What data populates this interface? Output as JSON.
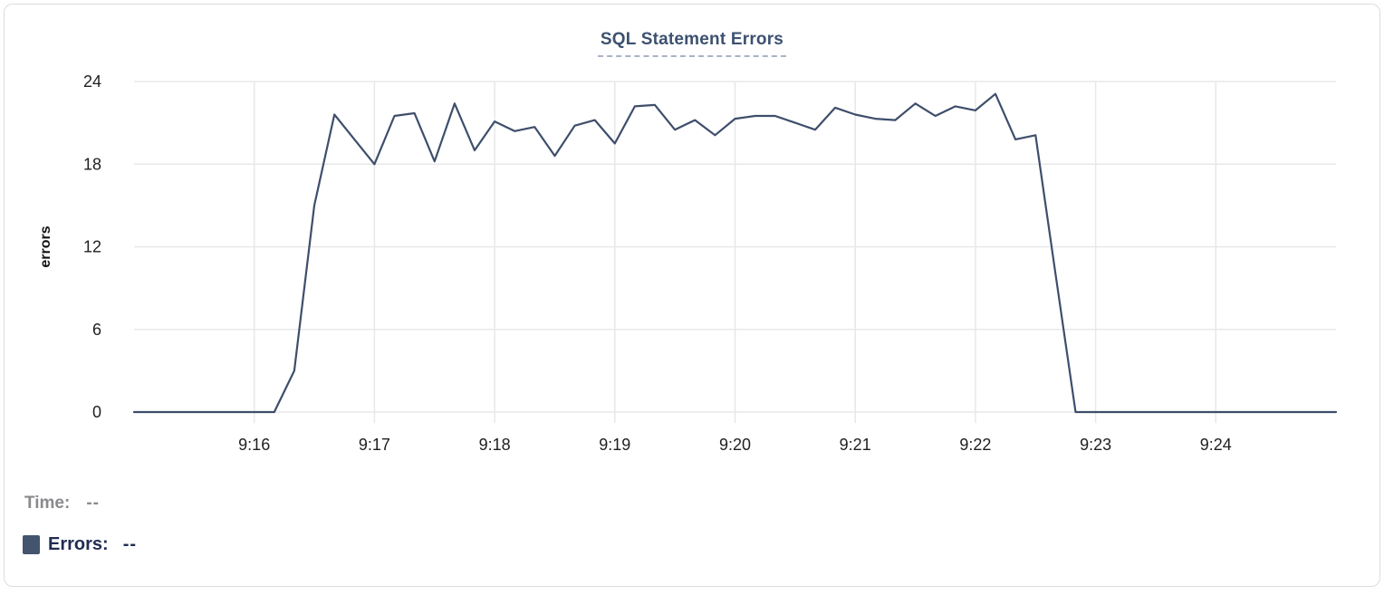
{
  "chart_data": {
    "type": "line",
    "title": "SQL Statement Errors",
    "xlabel": "",
    "ylabel": "errors",
    "ylim": [
      0,
      24
    ],
    "y_ticks": [
      0,
      6,
      12,
      18,
      24
    ],
    "x_tick_labels": [
      "9:16",
      "9:17",
      "9:18",
      "9:19",
      "9:20",
      "9:21",
      "9:22",
      "9:23",
      "9:24"
    ],
    "x_range": [
      "9:15:00",
      "9:25:00"
    ],
    "sample_interval_seconds": 10,
    "grid": true,
    "legend_position": "bottom-left",
    "series": [
      {
        "name": "Errors",
        "color": "#3e4e6b",
        "x": [
          "9:15:00",
          "9:15:10",
          "9:15:20",
          "9:15:30",
          "9:15:40",
          "9:15:50",
          "9:16:00",
          "9:16:10",
          "9:16:20",
          "9:16:30",
          "9:16:40",
          "9:16:50",
          "9:17:00",
          "9:17:10",
          "9:17:20",
          "9:17:30",
          "9:17:40",
          "9:17:50",
          "9:18:00",
          "9:18:10",
          "9:18:20",
          "9:18:30",
          "9:18:40",
          "9:18:50",
          "9:19:00",
          "9:19:10",
          "9:19:20",
          "9:19:30",
          "9:19:40",
          "9:19:50",
          "9:20:00",
          "9:20:10",
          "9:20:20",
          "9:20:30",
          "9:20:40",
          "9:20:50",
          "9:21:00",
          "9:21:10",
          "9:21:20",
          "9:21:30",
          "9:21:40",
          "9:21:50",
          "9:22:00",
          "9:22:10",
          "9:22:20",
          "9:22:30",
          "9:22:40",
          "9:22:50",
          "9:23:00",
          "9:23:10",
          "9:23:20",
          "9:23:30",
          "9:23:40",
          "9:23:50",
          "9:24:00",
          "9:24:10",
          "9:24:20",
          "9:24:30",
          "9:24:40",
          "9:24:50",
          "9:25:00"
        ],
        "values": [
          0,
          0,
          0,
          0,
          0,
          0,
          0,
          0,
          3,
          15,
          21.6,
          19.8,
          18,
          21.5,
          21.7,
          18.2,
          22.4,
          19,
          21.1,
          20.4,
          20.7,
          18.6,
          20.8,
          21.2,
          19.5,
          22.2,
          22.3,
          20.5,
          21.2,
          20.1,
          21.3,
          21.5,
          21.5,
          21,
          20.5,
          22.1,
          21.6,
          21.3,
          21.2,
          22.4,
          21.5,
          22.2,
          21.9,
          23.1,
          19.8,
          20.1,
          10,
          0,
          0,
          0,
          0,
          0,
          0,
          0,
          0,
          0,
          0,
          0,
          0,
          0,
          0
        ]
      }
    ]
  },
  "legend": {
    "time_label": "Time:",
    "time_value": "--",
    "errors_label": "Errors:",
    "errors_value": "--",
    "errors_swatch_color": "#44546e"
  },
  "colors": {
    "title": "#3d5170",
    "title_underline": "#a9b3c6",
    "line": "#3e4e6b",
    "grid": "#e8e8e8",
    "tick_label": "#1f1f1f",
    "axis_label": "#111111",
    "time_label": "#8a8a8e",
    "errors_label": "#212c52",
    "card_border": "#dcdcdc"
  }
}
